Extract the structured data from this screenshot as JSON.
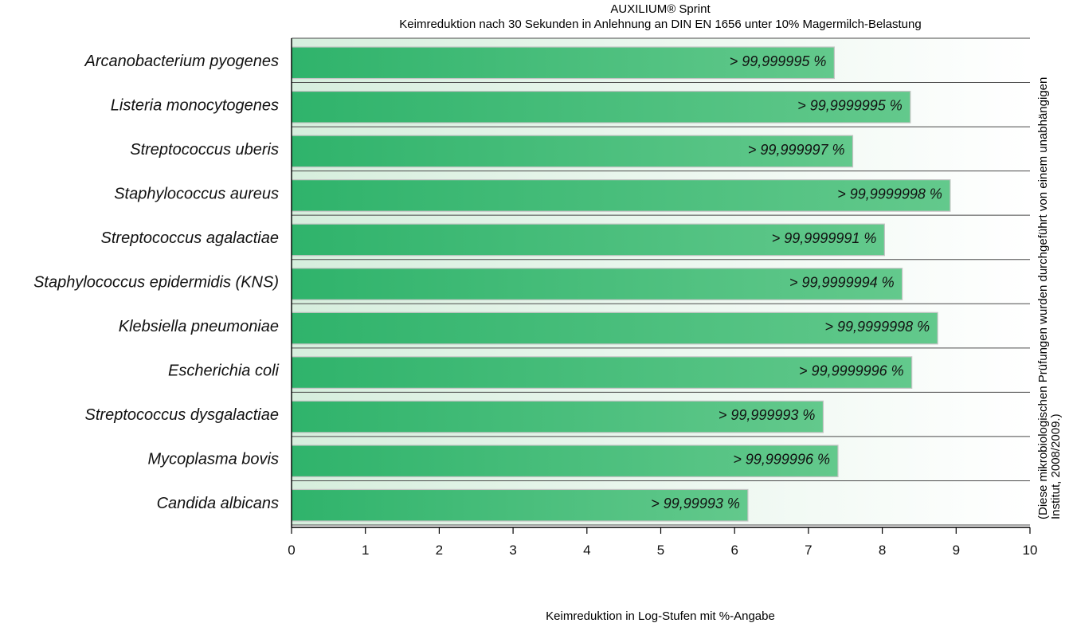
{
  "colors": {
    "bar_start": "#2fb36b",
    "bar_end": "#63c98c",
    "background_tint": "#d6eedd",
    "separator": "#4a4a4a",
    "text": "#111111"
  },
  "chart_data": {
    "type": "bar",
    "orientation": "horizontal",
    "title": "AUXILIUM® Sprint",
    "subtitle": "Keimreduktion nach 30 Sekunden in Anlehnung an DIN EN 1656 unter 10% Magermilch-Belastung",
    "xlabel": "Keimreduktion in Log-Stufen mit %-Angabe",
    "ylabel": "",
    "xlim": [
      0,
      10
    ],
    "x_ticks": [
      0,
      1,
      2,
      3,
      4,
      5,
      6,
      7,
      8,
      9,
      10
    ],
    "grid": false,
    "legend": "none",
    "side_note": "(Diese mikrobiologischen Prüfungen wurden durchgeführt von einem unabhängigen Institut, 2008/2009.)",
    "categories": [
      "Arcanobacterium pyogenes",
      "Listeria monocytogenes",
      "Streptococcus uberis",
      "Staphylococcus aureus",
      "Streptococcus agalactiae",
      "Staphylococcus epidermidis (KNS)",
      "Klebsiella pneumoniae",
      "Escherichia coli",
      "Streptococcus dysgalactiae",
      "Mycoplasma bovis",
      "Candida albicans"
    ],
    "values": [
      7.35,
      8.38,
      7.6,
      8.92,
      8.03,
      8.27,
      8.75,
      8.4,
      7.2,
      7.4,
      6.18
    ],
    "labels": [
      "> 99,999995 %",
      "> 99,9999995 %",
      "> 99,999997 %",
      "> 99,9999998 %",
      "> 99,9999991 %",
      "> 99,9999994 %",
      "> 99,9999998 %",
      "> 99,9999996 %",
      "> 99,999993 %",
      "> 99,999996 %",
      "> 99,99993 %"
    ]
  }
}
